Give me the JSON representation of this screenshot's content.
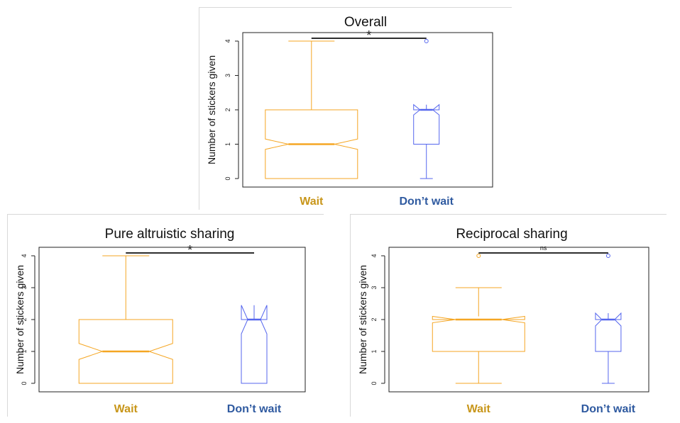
{
  "colors": {
    "wait": "#f5a623",
    "dont_wait": "#5566ee",
    "wait_label": "#c8961a",
    "dont_wait_label": "#2f5aa0"
  },
  "chart_data": [
    {
      "type": "box",
      "title": "Overall",
      "ylabel": "Number of stickers given",
      "categories": [
        "Wait",
        "Don’t wait"
      ],
      "yticks": [
        "0",
        "1",
        "2",
        "3",
        "4"
      ],
      "ylim": [
        0,
        4
      ],
      "boxes": [
        {
          "name": "Wait",
          "min": 0,
          "q1": 0,
          "median": 1,
          "q3": 2,
          "max": 4,
          "notch_low": 0.85,
          "notch_high": 1.15,
          "outliers": []
        },
        {
          "name": "Don’t wait",
          "min": 0,
          "q1": 1,
          "median": 2,
          "q3": 2,
          "max": 2,
          "notch_low": 1.85,
          "notch_high": 2.15,
          "outliers": [
            4
          ]
        }
      ],
      "significance": "*"
    },
    {
      "type": "box",
      "title": "Pure altruistic sharing",
      "ylabel": "Number of stickers given",
      "categories": [
        "Wait",
        "Don’t wait"
      ],
      "yticks": [
        "0",
        "1",
        "2",
        "3",
        "4"
      ],
      "ylim": [
        0,
        4
      ],
      "boxes": [
        {
          "name": "Wait",
          "min": 0,
          "q1": 0,
          "median": 1,
          "q3": 2,
          "max": 4,
          "notch_low": 0.75,
          "notch_high": 1.25,
          "outliers": []
        },
        {
          "name": "Don’t wait",
          "min": 0,
          "q1": 0,
          "median": 2,
          "q3": 2,
          "max": 2,
          "notch_low": 1.55,
          "notch_high": 2.45,
          "outliers": []
        }
      ],
      "significance": "*"
    },
    {
      "type": "box",
      "title": "Reciprocal sharing",
      "ylabel": "Number of stickers given",
      "categories": [
        "Wait",
        "Don’t wait"
      ],
      "yticks": [
        "0",
        "1",
        "2",
        "3",
        "4"
      ],
      "ylim": [
        0,
        4
      ],
      "boxes": [
        {
          "name": "Wait",
          "min": 0,
          "q1": 1,
          "median": 2,
          "q3": 2,
          "max": 3,
          "notch_low": 1.9,
          "notch_high": 2.1,
          "outliers": [
            4
          ]
        },
        {
          "name": "Don’t wait",
          "min": 0,
          "q1": 1,
          "median": 2,
          "q3": 2,
          "max": 2,
          "notch_low": 1.8,
          "notch_high": 2.2,
          "outliers": [
            4
          ]
        }
      ],
      "significance": "ns"
    }
  ]
}
